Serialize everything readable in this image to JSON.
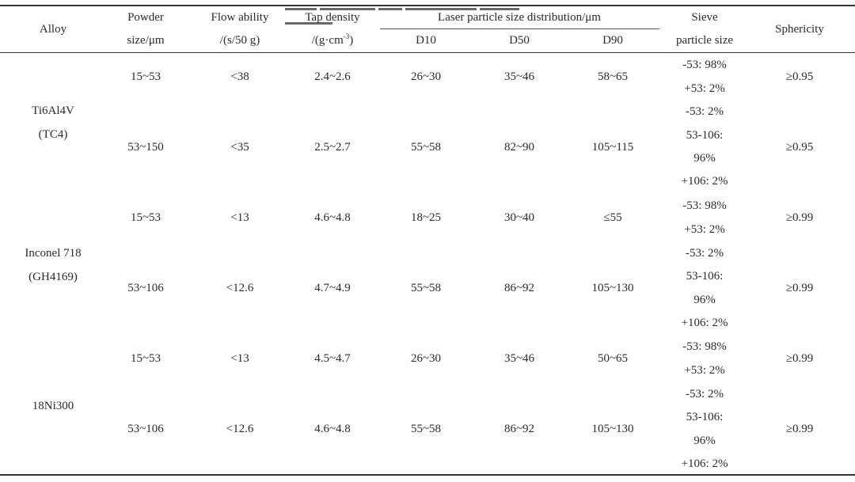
{
  "header": {
    "alloy": "Alloy",
    "powder_size": [
      "Powder",
      "size/μm"
    ],
    "flow_ability": [
      "Flow ability",
      "/(s/50 g)"
    ],
    "tap_density": [
      "Tap density",
      "/(g·cm",
      "-3",
      ")"
    ],
    "laser": "Laser particle size distribution/μm",
    "d10": "D10",
    "d50": "D50",
    "d90": "D90",
    "sieve": [
      "Sieve",
      "particle size"
    ],
    "sphericity": "Sphericity"
  },
  "alloys": [
    {
      "name": [
        "Ti6Al4V",
        "(TC4)"
      ]
    },
    {
      "name": [
        "Inconel 718",
        "(GH4169)"
      ]
    },
    {
      "name": [
        "18Ni300"
      ]
    }
  ],
  "rows": [
    {
      "size": "15~53",
      "flow": "<38",
      "tap": "2.4~2.6",
      "d10": "26~30",
      "d50": "35~46",
      "d90": "58~65",
      "sieve": [
        "-53: 98%",
        "+53: 2%"
      ],
      "sph": "≥0.95"
    },
    {
      "size": "53~150",
      "flow": "<35",
      "tap": "2.5~2.7",
      "d10": "55~58",
      "d50": "82~90",
      "d90": "105~115",
      "sieve": [
        "-53: 2%",
        "53-106:",
        "96%",
        "+106: 2%"
      ],
      "sph": "≥0.95"
    },
    {
      "size": "15~53",
      "flow": "<13",
      "tap": "4.6~4.8",
      "d10": "18~25",
      "d50": "30~40",
      "d90": "≤55",
      "sieve": [
        "-53: 98%",
        "+53: 2%"
      ],
      "sph": "≥0.99"
    },
    {
      "size": "53~106",
      "flow": "<12.6",
      "tap": "4.7~4.9",
      "d10": "55~58",
      "d50": "86~92",
      "d90": "105~130",
      "sieve": [
        "-53: 2%",
        "53-106:",
        "96%",
        "+106: 2%"
      ],
      "sph": "≥0.99"
    },
    {
      "size": "15~53",
      "flow": "<13",
      "tap": "4.5~4.7",
      "d10": "26~30",
      "d50": "35~46",
      "d90": "50~65",
      "sieve": [
        "-53: 98%",
        "+53: 2%"
      ],
      "sph": "≥0.99"
    },
    {
      "size": "53~106",
      "flow": "<12.6",
      "tap": "4.6~4.8",
      "d10": "55~58",
      "d50": "86~92",
      "d90": "105~130",
      "sieve": [
        "-53: 2%",
        "53-106:",
        "96%",
        "+106: 2%"
      ],
      "sph": "≥0.99"
    }
  ]
}
